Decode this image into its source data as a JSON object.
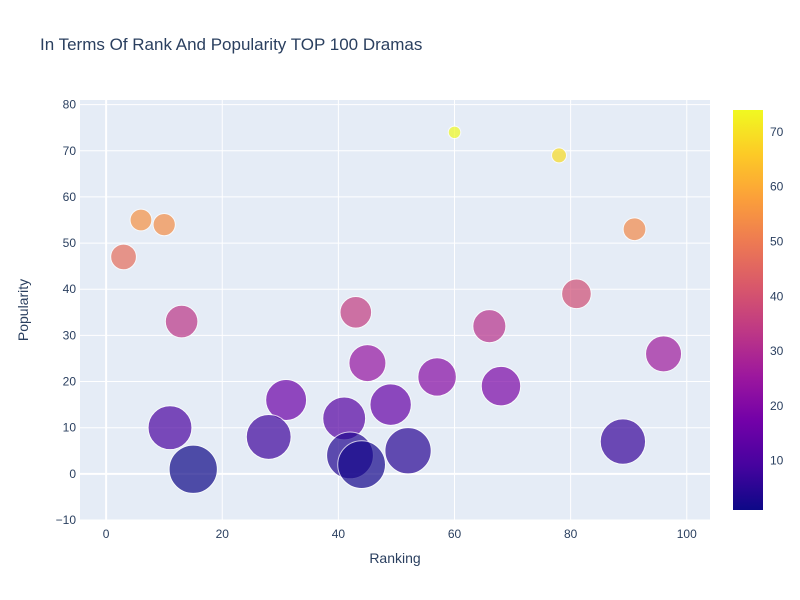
{
  "chart_data": {
    "type": "scatter",
    "title": "In Terms Of Rank And Popularity TOP 100 Dramas",
    "xlabel": "Ranking",
    "ylabel": "Popularity",
    "xlim": [
      -4.5,
      104
    ],
    "ylim": [
      -10,
      81
    ],
    "xticks": [
      0,
      20,
      40,
      60,
      80,
      100
    ],
    "yticks": [
      -10,
      0,
      10,
      20,
      30,
      40,
      50,
      60,
      70,
      80
    ],
    "grid": true,
    "colorscale": "plasma",
    "colorbar": {
      "range": [
        1,
        74
      ],
      "ticks": [
        10,
        20,
        30,
        40,
        50,
        60,
        70
      ]
    },
    "size_encodes": "inverse of popularity",
    "points": [
      {
        "x": 3,
        "y": 47
      },
      {
        "x": 6,
        "y": 55
      },
      {
        "x": 10,
        "y": 54
      },
      {
        "x": 11,
        "y": 10
      },
      {
        "x": 13,
        "y": 33
      },
      {
        "x": 15,
        "y": 1
      },
      {
        "x": 28,
        "y": 8
      },
      {
        "x": 31,
        "y": 16
      },
      {
        "x": 41,
        "y": 12
      },
      {
        "x": 42,
        "y": 4
      },
      {
        "x": 43,
        "y": 35
      },
      {
        "x": 44,
        "y": 2
      },
      {
        "x": 45,
        "y": 24
      },
      {
        "x": 49,
        "y": 15
      },
      {
        "x": 52,
        "y": 5
      },
      {
        "x": 57,
        "y": 21
      },
      {
        "x": 60,
        "y": 74
      },
      {
        "x": 66,
        "y": 32
      },
      {
        "x": 68,
        "y": 19
      },
      {
        "x": 78,
        "y": 69
      },
      {
        "x": 81,
        "y": 39
      },
      {
        "x": 89,
        "y": 7
      },
      {
        "x": 91,
        "y": 53
      },
      {
        "x": 96,
        "y": 26
      }
    ]
  }
}
